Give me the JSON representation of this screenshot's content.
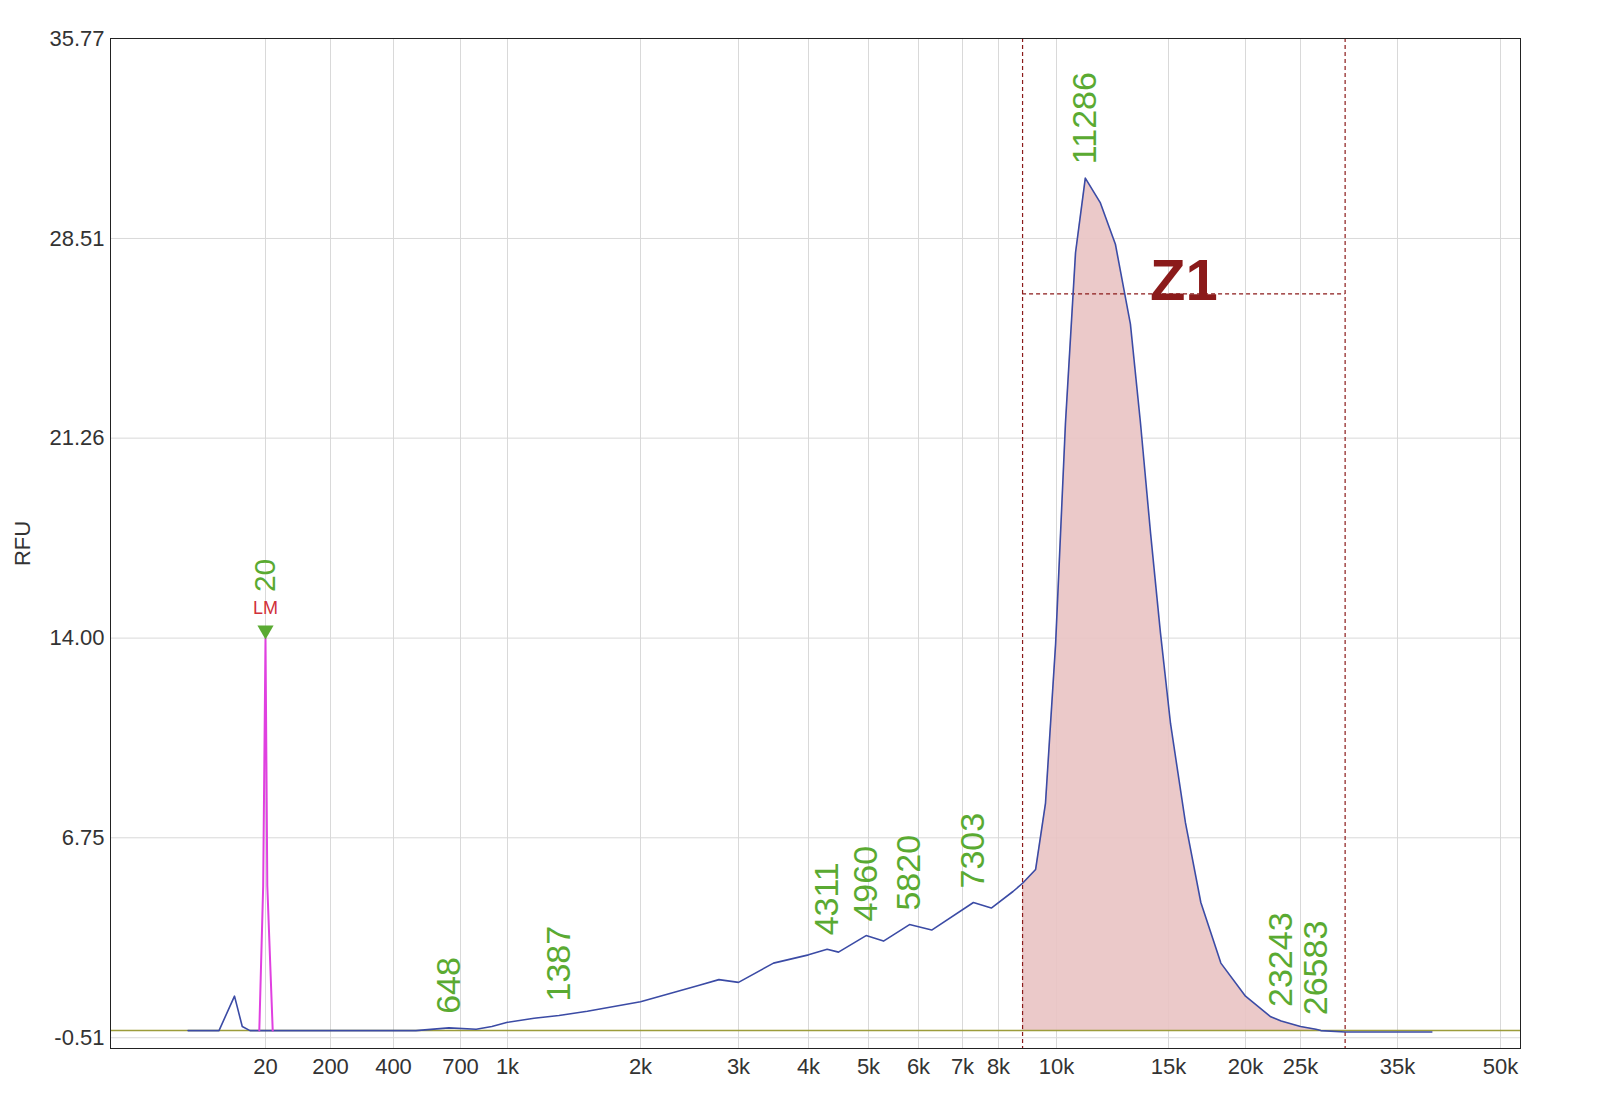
{
  "chart_data": {
    "type": "line",
    "y_label": "RFU",
    "color": "#3b4ba5",
    "grid": true,
    "xlim": [
      0,
      53000
    ],
    "xticks": [
      20,
      200,
      400,
      700,
      {
        "value": 1000,
        "label": "1k"
      },
      {
        "value": 2000,
        "label": "2k"
      },
      {
        "value": 3000,
        "label": "3k"
      },
      {
        "value": 4000,
        "label": "4k"
      },
      {
        "value": 5000,
        "label": "5k"
      },
      {
        "value": 6000,
        "label": "6k"
      },
      {
        "value": 7000,
        "label": "7k"
      },
      {
        "value": 8000,
        "label": "8k"
      },
      {
        "value": 10000,
        "label": "10k"
      },
      {
        "value": 15000,
        "label": "15k"
      },
      {
        "value": 20000,
        "label": "20k"
      },
      {
        "value": 25000,
        "label": "25k"
      },
      {
        "value": 35000,
        "label": "35k"
      },
      {
        "value": 50000,
        "label": "50k"
      }
    ],
    "ylim": [
      -0.9,
      35.77
    ],
    "yticks": [
      -0.51,
      6.75,
      {
        "value": 14,
        "label": "14.00"
      },
      21.26,
      28.51,
      35.77
    ],
    "baseline": -0.25,
    "x": [
      10,
      14,
      16,
      17,
      18,
      25,
      100,
      200,
      300,
      400,
      500,
      648,
      800,
      900,
      1000,
      1200,
      1387,
      1600,
      2000,
      2300,
      2600,
      2800,
      3000,
      3500,
      4000,
      4311,
      4500,
      4960,
      5300,
      5820,
      6300,
      7303,
      7800,
      8500,
      8830,
      9280,
      9620,
      9970,
      10400,
      10850,
      11286,
      11960,
      12630,
      13300,
      13750,
      14200,
      14640,
      15130,
      16100,
      17100,
      18400,
      20000,
      22300,
      23243,
      25000,
      26583,
      27100,
      29600,
      35000,
      40000
    ],
    "values": [
      -0.25,
      -0.25,
      1.0,
      -0.1,
      -0.25,
      -0.25,
      -0.25,
      -0.25,
      -0.25,
      -0.25,
      -0.25,
      -0.15,
      -0.2,
      -0.1,
      0.05,
      0.2,
      0.3,
      0.45,
      0.8,
      1.1,
      1.4,
      1.6,
      1.5,
      2.2,
      2.5,
      2.7,
      2.6,
      3.2,
      3.0,
      3.6,
      3.4,
      4.4,
      4.2,
      4.8,
      5.1,
      5.6,
      8.0,
      13.8,
      21.8,
      28.0,
      30.7,
      29.8,
      28.3,
      25.4,
      21.8,
      17.8,
      14.2,
      10.9,
      7.3,
      4.4,
      2.2,
      1.0,
      0.25,
      0.1,
      -0.1,
      -0.2,
      -0.25,
      -0.3,
      -0.3,
      -0.3
    ],
    "marker": {
      "label": "LM",
      "x_value": 20,
      "color": "#e040e0",
      "x": [
        19.2,
        19.7,
        20,
        25,
        40
      ],
      "values": [
        -0.25,
        5.0,
        14.0,
        5.0,
        -0.25
      ]
    },
    "peaks": [
      {
        "x": 648,
        "y": -0.15
      },
      {
        "x": 1387,
        "y": 0.3
      },
      {
        "x": 4311,
        "y": 2.7
      },
      {
        "x": 4960,
        "y": 3.2
      },
      {
        "x": 5820,
        "y": 3.6
      },
      {
        "x": 7303,
        "y": 4.4
      },
      {
        "x": 11286,
        "y": 30.7
      },
      {
        "x": 23243,
        "y": 0.1
      },
      {
        "x": 26583,
        "y": -0.2
      }
    ],
    "region": {
      "label": "Z1",
      "x": [
        8830,
        29600
      ],
      "y": 26.5,
      "color": "#8b1a1a",
      "fill": "#e9c3c3"
    }
  }
}
